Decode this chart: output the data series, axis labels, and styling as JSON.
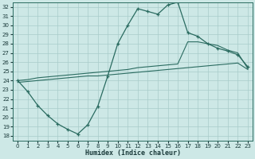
{
  "xlabel": "Humidex (Indice chaleur)",
  "bg_color": "#cde8e6",
  "grid_color": "#a8ccca",
  "line_color": "#2a6b60",
  "xlim": [
    -0.5,
    23.5
  ],
  "ylim": [
    17.5,
    32.5
  ],
  "xticks": [
    0,
    1,
    2,
    3,
    4,
    5,
    6,
    7,
    8,
    9,
    10,
    11,
    12,
    13,
    14,
    15,
    16,
    17,
    18,
    19,
    20,
    21,
    22,
    23
  ],
  "yticks": [
    18,
    19,
    20,
    21,
    22,
    23,
    24,
    25,
    26,
    27,
    28,
    29,
    30,
    31,
    32
  ],
  "curve_main_x": [
    0,
    1,
    2,
    3,
    4,
    5,
    6,
    7,
    8,
    9,
    10,
    11,
    12,
    13,
    14,
    15,
    16,
    17,
    18,
    19,
    20,
    21,
    22,
    23
  ],
  "curve_main_y": [
    24.0,
    22.8,
    21.3,
    20.2,
    19.3,
    18.7,
    18.2,
    19.2,
    21.2,
    24.5,
    28.0,
    30.0,
    31.8,
    31.5,
    31.2,
    32.2,
    32.5,
    29.2,
    28.8,
    28.0,
    27.5,
    27.2,
    26.8,
    25.5
  ],
  "curve_upper_x": [
    0,
    1,
    2,
    3,
    4,
    5,
    6,
    7,
    8,
    9,
    10,
    11,
    12,
    13,
    14,
    15,
    16,
    17,
    18,
    19,
    20,
    21,
    22,
    23
  ],
  "curve_upper_y": [
    24.0,
    24.1,
    24.3,
    24.4,
    24.5,
    24.6,
    24.7,
    24.8,
    24.9,
    25.0,
    25.1,
    25.2,
    25.4,
    25.5,
    25.6,
    25.7,
    25.8,
    28.2,
    28.2,
    28.0,
    27.8,
    27.3,
    27.0,
    25.3
  ],
  "curve_lower_x": [
    0,
    1,
    2,
    3,
    4,
    5,
    6,
    7,
    8,
    9,
    10,
    11,
    12,
    13,
    14,
    15,
    16,
    17,
    18,
    19,
    20,
    21,
    22,
    23
  ],
  "curve_lower_y": [
    23.8,
    23.9,
    24.0,
    24.1,
    24.2,
    24.3,
    24.4,
    24.5,
    24.5,
    24.6,
    24.7,
    24.8,
    24.9,
    25.0,
    25.1,
    25.2,
    25.3,
    25.4,
    25.5,
    25.6,
    25.7,
    25.8,
    25.9,
    25.2
  ]
}
